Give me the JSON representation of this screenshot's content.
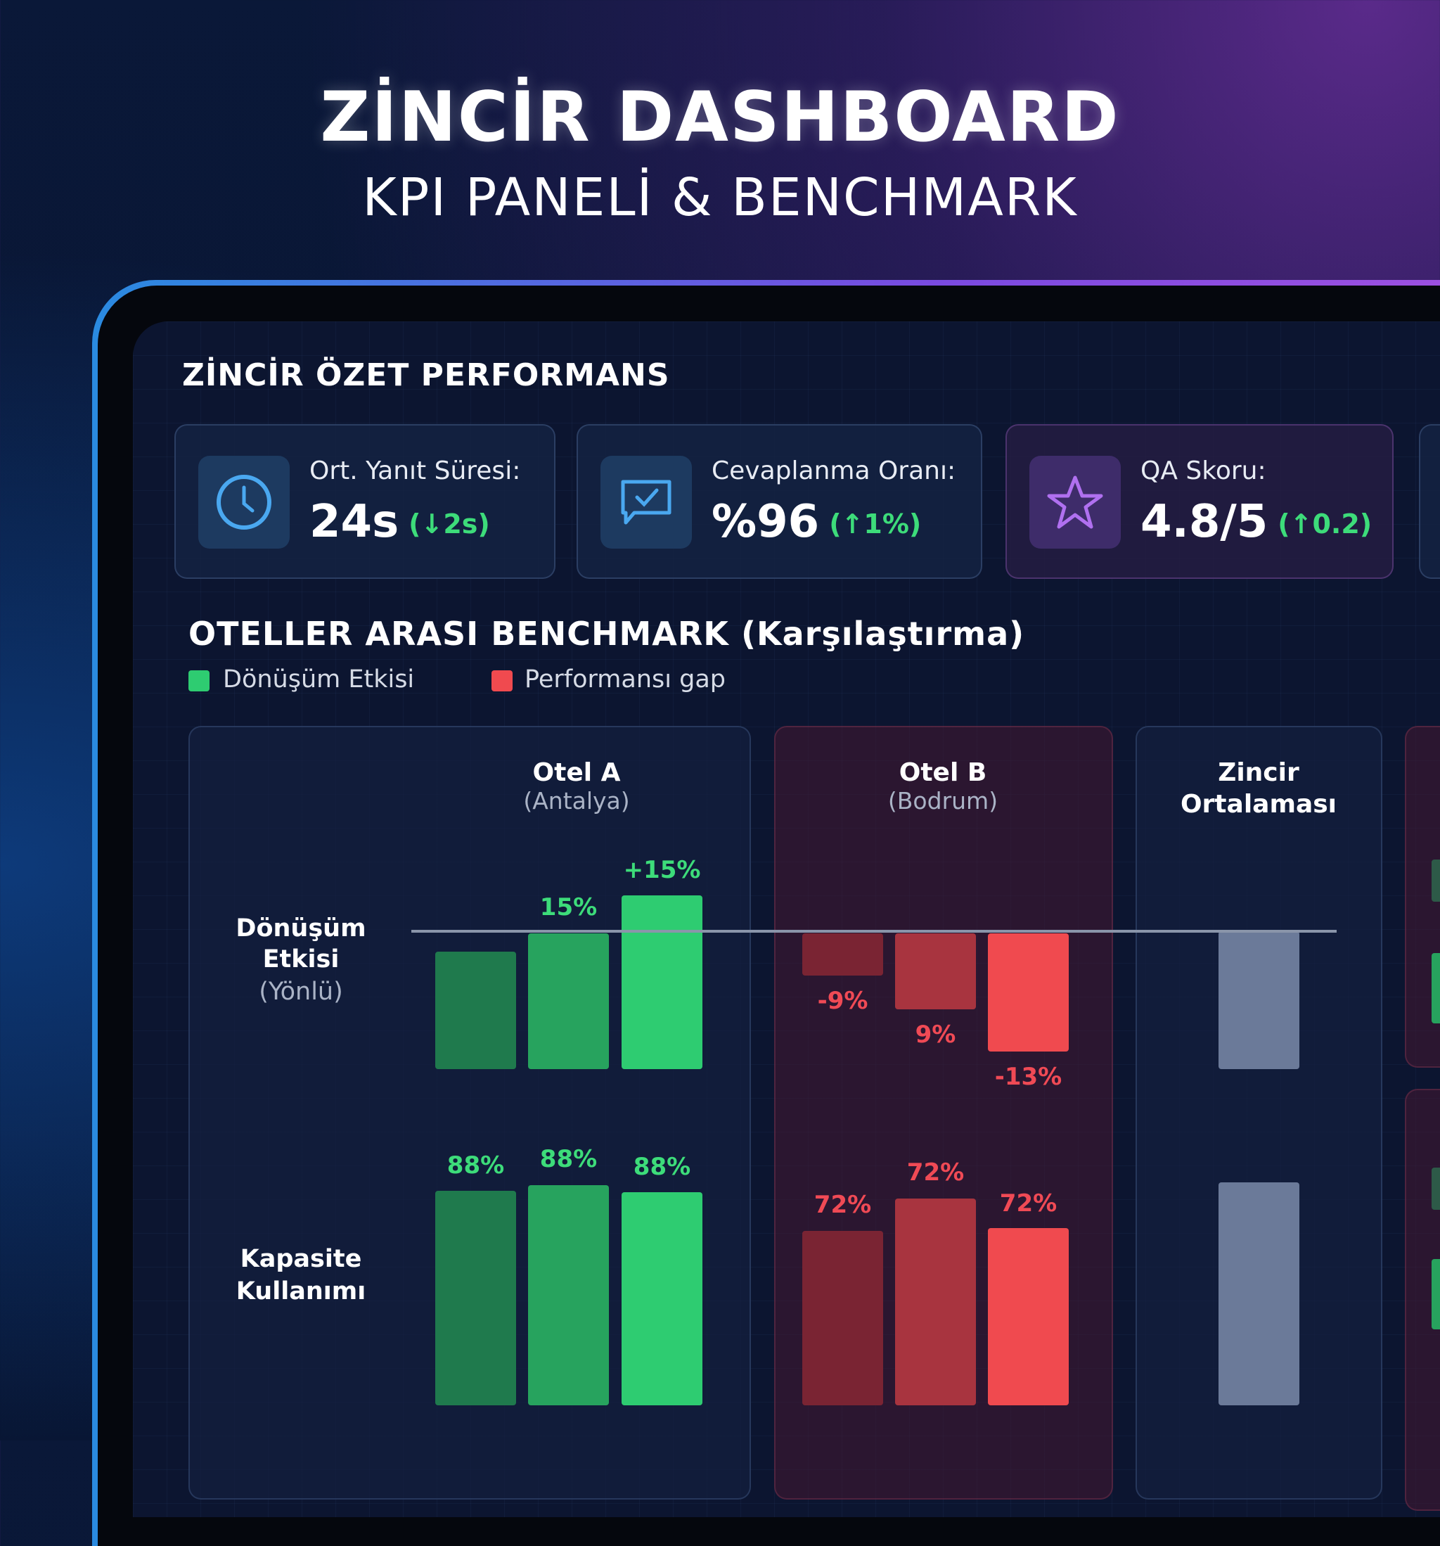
{
  "header": {
    "title": "ZİNCİR DASHBOARD",
    "subtitle": "KPI PANELİ & BENCHMARK"
  },
  "summary": {
    "title": "ZİNCİR ÖZET PERFORMANS",
    "kpis": [
      {
        "label": "Ort. Yanıt Süresi:",
        "value": "24s",
        "delta": "(↓2s)",
        "icon": "clock-icon"
      },
      {
        "label": "Cevaplanma Oranı:",
        "value": "%96",
        "delta": "(↑1%)",
        "icon": "chat-check-icon"
      },
      {
        "label": "QA Skoru:",
        "value": "4.8/5",
        "delta": "(↑0.2)",
        "icon": "star-icon"
      }
    ]
  },
  "benchmark": {
    "title": "OTELLER ARASI BENCHMARK (Karşılaştırma)",
    "legend": [
      {
        "label": "Dönüşüm Etkisi",
        "color": "#2ecc71"
      },
      {
        "label": "Performansı gap",
        "color": "#f04a4f"
      }
    ],
    "rows": {
      "conversion": {
        "title": "Dönüşüm",
        "title2": "Etkisi",
        "sub": "(Yönlü)"
      },
      "capacity": {
        "title": "Kapasite",
        "title2": "Kullanımı"
      }
    },
    "hotels": [
      {
        "name": "Otel A",
        "location": "(Antalya)",
        "status": "positive",
        "conversion_labels": [
          "",
          "15%",
          "+15%"
        ],
        "capacity_labels": [
          "88%",
          "88%",
          "88%"
        ]
      },
      {
        "name": "Otel B",
        "location": "(Bodrum)",
        "status": "gap",
        "conversion_labels": [
          "-9%",
          "9%",
          "-13%"
        ],
        "capacity_labels": [
          "72%",
          "72%",
          "72%"
        ]
      },
      {
        "name": "Zincir",
        "name2": "Ortalaması",
        "status": "average"
      }
    ]
  },
  "colors": {
    "green": [
      "#1f7a4d",
      "#27a35e",
      "#2ecc71"
    ],
    "red": [
      "#7a2433",
      "#a8343f",
      "#f04a4f"
    ],
    "average": "#6b7a99"
  }
}
